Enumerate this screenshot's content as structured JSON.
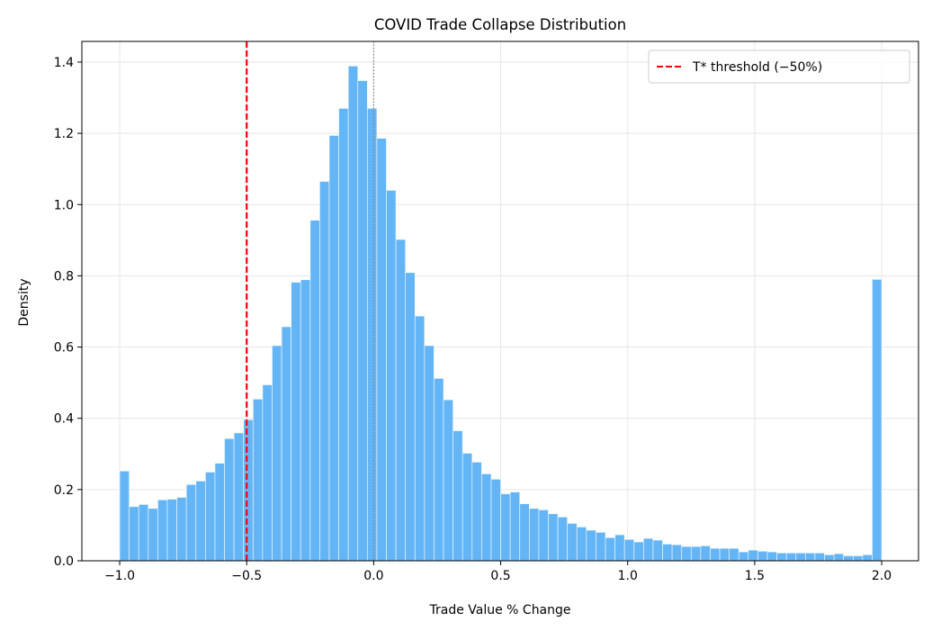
{
  "chart_data": {
    "type": "bar",
    "title": "COVID Trade Collapse Distribution",
    "xlabel": "Trade Value % Change",
    "ylabel": "Density",
    "xlim": [
      -1.149,
      2.145
    ],
    "ylim": [
      0,
      1.458
    ],
    "grid": true,
    "legend_position": "top-right",
    "bin_start": -1.0,
    "bin_end": 2.0,
    "x_ticks": [
      "−1.0",
      "−0.5",
      "0.0",
      "0.5",
      "1.0",
      "1.5",
      "2.0"
    ],
    "x_tick_values": [
      -1.0,
      -0.5,
      0.0,
      0.5,
      1.0,
      1.5,
      2.0
    ],
    "y_ticks": [
      "0.0",
      "0.2",
      "0.4",
      "0.6",
      "0.8",
      "1.0",
      "1.2",
      "1.4"
    ],
    "y_tick_values": [
      0,
      0.2,
      0.4,
      0.6,
      0.8,
      1.0,
      1.2,
      1.4
    ],
    "values": [
      0.252,
      0.152,
      0.158,
      0.147,
      0.171,
      0.173,
      0.178,
      0.214,
      0.224,
      0.249,
      0.274,
      0.343,
      0.359,
      0.396,
      0.454,
      0.494,
      0.604,
      0.657,
      0.782,
      0.789,
      0.956,
      1.065,
      1.194,
      1.27,
      1.389,
      1.348,
      1.27,
      1.186,
      1.04,
      0.902,
      0.809,
      0.687,
      0.604,
      0.512,
      0.452,
      0.365,
      0.302,
      0.277,
      0.244,
      0.229,
      0.188,
      0.193,
      0.16,
      0.147,
      0.143,
      0.132,
      0.123,
      0.105,
      0.095,
      0.086,
      0.08,
      0.065,
      0.073,
      0.06,
      0.053,
      0.063,
      0.058,
      0.047,
      0.045,
      0.04,
      0.04,
      0.042,
      0.035,
      0.035,
      0.035,
      0.025,
      0.03,
      0.027,
      0.025,
      0.022,
      0.022,
      0.022,
      0.022,
      0.022,
      0.017,
      0.02,
      0.014,
      0.014,
      0.017,
      0.79
    ],
    "threshold": {
      "x": -0.5,
      "label": "T* threshold (−50%)",
      "color": "#ff0000"
    },
    "zero_line": {
      "x": 0.0,
      "color": "#808080"
    },
    "bar_color": "#64b5f6"
  }
}
